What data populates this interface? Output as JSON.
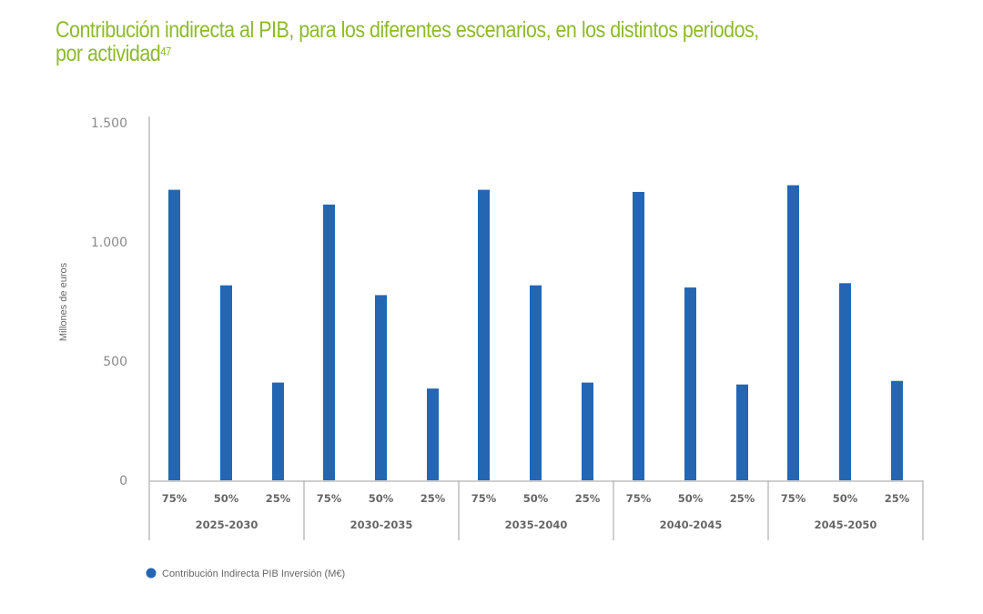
{
  "title": {
    "text": "Contribución indirecta al PIB, para los diferentes escenarios, en los distintos periodos,",
    "text_line2": "por actividad",
    "footnote": "47"
  },
  "colors": {
    "title": "#8dbb2c",
    "bar": "#2566b3",
    "axis": "#bdbdbd",
    "text": "#666666"
  },
  "chart_data": {
    "type": "bar",
    "title": "Contribución indirecta al PIB, para los diferentes escenarios, en los distintos periodos, por actividad",
    "xlabel": "",
    "ylabel": "Millones de euros",
    "ylim": [
      0,
      1500
    ],
    "yticks": [
      0,
      500,
      1000,
      1500
    ],
    "ytick_labels": [
      "0",
      "500",
      "1.000",
      "1.500"
    ],
    "grid": false,
    "groups": [
      "2025-2030",
      "2030-2035",
      "2035-2040",
      "2040-2045",
      "2045-2050"
    ],
    "subcategories": [
      "75%",
      "50%",
      "25%"
    ],
    "categories": [
      "2025-2030 75%",
      "2025-2030 50%",
      "2025-2030 25%",
      "2030-2035 75%",
      "2030-2035 50%",
      "2030-2035 25%",
      "2035-2040 75%",
      "2035-2040 50%",
      "2035-2040 25%",
      "2040-2045 75%",
      "2040-2045 50%",
      "2040-2045 25%",
      "2045-2050 75%",
      "2045-2050 50%",
      "2045-2050 25%"
    ],
    "series": [
      {
        "name": "Contribución Indirecta PIB Inversión (M€)",
        "values": [
          1219,
          818,
          410,
          1157,
          777,
          385,
          1219,
          818,
          410,
          1210,
          809,
          402,
          1238,
          827,
          417
        ]
      }
    ],
    "legend": {
      "position": "bottom-left",
      "entries": [
        "Contribución Indirecta PIB Inversión (M€)"
      ]
    }
  }
}
